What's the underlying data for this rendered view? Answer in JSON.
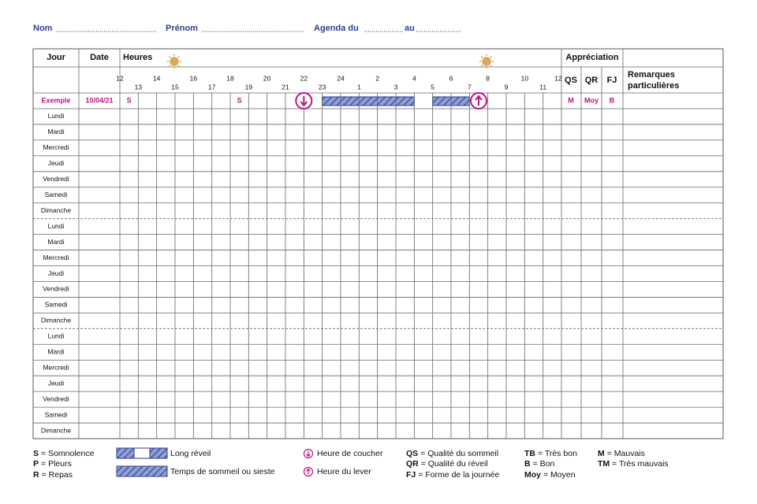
{
  "header": {
    "nom": "Nom",
    "prenom": "Prénom",
    "agenda": "Agenda du",
    "au": "au"
  },
  "table": {
    "headers": {
      "jour": "Jour",
      "date": "Date",
      "heures": "Heures",
      "appreciation": "Appréciation",
      "qs": "QS",
      "qr": "QR",
      "fj": "FJ",
      "remarques": [
        "Remarques",
        "particulières"
      ]
    },
    "hours": [
      "12",
      "13",
      "14",
      "15",
      "16",
      "17",
      "18",
      "19",
      "20",
      "21",
      "22",
      "23",
      "24",
      "1",
      "2",
      "3",
      "4",
      "5",
      "6",
      "7",
      "8",
      "9",
      "10",
      "11",
      "12"
    ],
    "example": {
      "label": "Exemple",
      "date": "10/04/21",
      "marks": [
        "S",
        "S"
      ],
      "qs": "M",
      "qr": "Moy",
      "fj": "B"
    },
    "rows": [
      "Lundi",
      "Mardi",
      "Mercredi",
      "Jeudi",
      "Vendredi",
      "Samedi",
      "Dimanche",
      "Lundi",
      "Mardi",
      "Mercredi",
      "Jeudi",
      "Vendredi",
      "Samedi",
      "Dimanche",
      "Lundi",
      "Mardi",
      "Mercredi",
      "Jeudi",
      "Vendredi",
      "Samedi",
      "Dimanche"
    ]
  },
  "legend": {
    "codes": [
      {
        "code": "S",
        "text": "= Somnolence"
      },
      {
        "code": "P",
        "text": "= Pleurs"
      },
      {
        "code": "R",
        "text": "= Repas"
      },
      {
        "code": "QS",
        "text": "= Qualité du sommeil"
      },
      {
        "code": "QR",
        "text": "= Qualité du réveil"
      },
      {
        "code": "FJ",
        "text": "= Forme de la journée"
      },
      {
        "code": "TB",
        "text": "= Très bon"
      },
      {
        "code": "B",
        "text": "= Bon"
      },
      {
        "code": "Moy",
        "text": "= Moyen"
      },
      {
        "code": "M",
        "text": "= Mauvais"
      },
      {
        "code": "TM",
        "text": "= Très mauvais"
      }
    ],
    "long_reveil": "Long réveil",
    "sommeil": "Temps de sommeil ou sieste",
    "coucher": "Heure de coucher",
    "lever": "Heure du lever"
  }
}
